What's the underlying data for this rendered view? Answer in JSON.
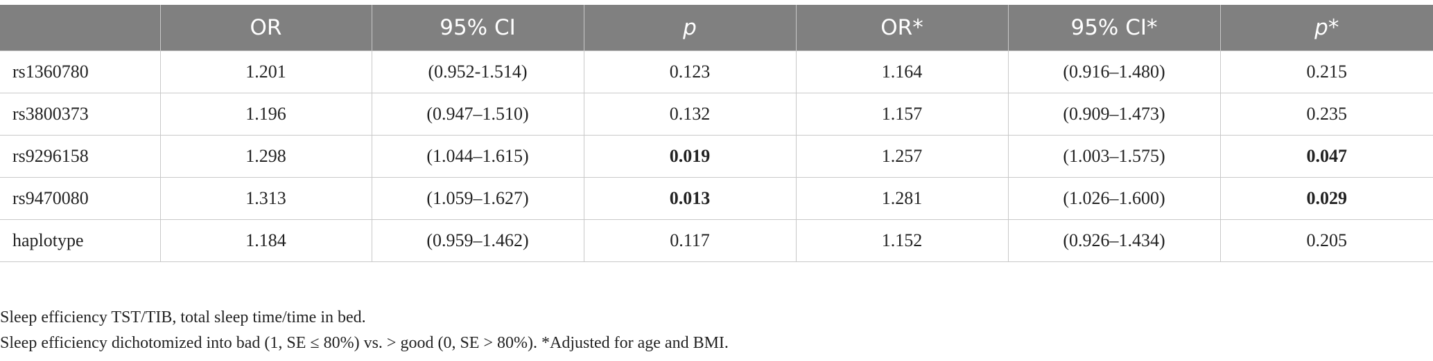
{
  "table": {
    "columns": [
      {
        "text": "OR"
      },
      {
        "text": "95% CI"
      },
      {
        "text": "p",
        "italic": true
      },
      {
        "text": "OR*"
      },
      {
        "text": "95% CI*"
      },
      {
        "text": "p*",
        "italic": true
      }
    ],
    "rows": [
      [
        {
          "text": "rs1360780"
        },
        {
          "text": "1.201"
        },
        {
          "text": "(0.952-1.514)"
        },
        {
          "text": "0.123"
        },
        {
          "text": "1.164"
        },
        {
          "text": "(0.916–1.480)"
        },
        {
          "text": "0.215"
        }
      ],
      [
        {
          "text": "rs3800373"
        },
        {
          "text": "1.196"
        },
        {
          "text": "(0.947–1.510)"
        },
        {
          "text": "0.132"
        },
        {
          "text": "1.157"
        },
        {
          "text": "(0.909–1.473)"
        },
        {
          "text": "0.235"
        }
      ],
      [
        {
          "text": "rs9296158"
        },
        {
          "text": "1.298"
        },
        {
          "text": "(1.044–1.615)"
        },
        {
          "text": "0.019",
          "bold": true
        },
        {
          "text": "1.257"
        },
        {
          "text": "(1.003–1.575)"
        },
        {
          "text": "0.047",
          "bold": true
        }
      ],
      [
        {
          "text": "rs9470080"
        },
        {
          "text": "1.313"
        },
        {
          "text": "(1.059–1.627)"
        },
        {
          "text": "0.013",
          "bold": true
        },
        {
          "text": "1.281"
        },
        {
          "text": "(1.026–1.600)"
        },
        {
          "text": "0.029",
          "bold": true
        }
      ],
      [
        {
          "text": "haplotype"
        },
        {
          "text": "1.184"
        },
        {
          "text": "(0.959–1.462)"
        },
        {
          "text": "0.117"
        },
        {
          "text": "1.152"
        },
        {
          "text": "(0.926–1.434)"
        },
        {
          "text": "0.205"
        }
      ]
    ]
  },
  "footnotes": [
    "Sleep efficiency TST/TIB, total sleep time/time in bed.",
    "Sleep efficiency dichotomized into bad (1, SE ≤ 80%) vs. > good (0, SE > 80%). *Adjusted for age and BMI."
  ]
}
